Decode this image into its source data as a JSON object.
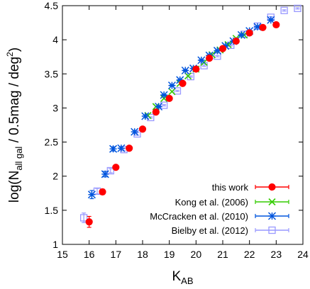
{
  "chart_data": {
    "type": "scatter",
    "xlabel": "K",
    "xlabel_sub": "AB",
    "ylabel_pre": "log(N",
    "ylabel_sub": "all gal",
    "ylabel_mid": " / 0.5mag / deg",
    "ylabel_sup": "2",
    "ylabel_post": ")",
    "xlim": [
      15,
      24
    ],
    "ylim": [
      1,
      4.5
    ],
    "xticks": [
      15,
      16,
      17,
      18,
      19,
      20,
      21,
      22,
      23,
      24
    ],
    "yticks": [
      1,
      1.5,
      2,
      2.5,
      3,
      3.5,
      4,
      4.5
    ],
    "legend_position": "bottom-right",
    "series": [
      {
        "name": "this work",
        "color": "#ff0000",
        "marker": "filled-circle",
        "x": [
          16.0,
          16.5,
          17.0,
          17.5,
          18.0,
          18.5,
          19.0,
          19.5,
          20.0,
          20.5,
          21.0,
          21.5,
          22.0,
          22.5,
          23.0
        ],
        "y": [
          1.33,
          1.77,
          2.13,
          2.41,
          2.69,
          2.94,
          3.14,
          3.36,
          3.57,
          3.73,
          3.87,
          3.98,
          4.1,
          4.18,
          4.22
        ],
        "yerr": [
          0.08,
          0.04,
          0.02,
          0.02,
          0.01,
          0.01,
          0.01,
          0.01,
          0.01,
          0.01,
          0.01,
          0.01,
          0.01,
          0.01,
          0.01
        ]
      },
      {
        "name": "Kong et al. (2006)",
        "color": "#33cc00",
        "marker": "x",
        "x": [
          18.2,
          18.5,
          18.8,
          19.1,
          19.4,
          19.7,
          20.0,
          20.3,
          20.6,
          20.9,
          21.2,
          21.5,
          21.8
        ],
        "y": [
          2.89,
          3.02,
          3.14,
          3.24,
          3.36,
          3.47,
          3.57,
          3.67,
          3.78,
          3.85,
          3.93,
          4.02,
          4.07
        ]
      },
      {
        "name": "McCracken et al. (2010)",
        "color": "#0055dd",
        "marker": "asterisk",
        "x": [
          16.1,
          16.6,
          16.9,
          17.2,
          17.7,
          18.1,
          18.6,
          18.8,
          19.1,
          19.4,
          19.6,
          19.9,
          20.2,
          20.5,
          20.8,
          21.1,
          21.4,
          21.7,
          22.0,
          22.3,
          22.8
        ],
        "y": [
          1.73,
          2.03,
          2.4,
          2.41,
          2.65,
          2.88,
          3.02,
          3.19,
          3.33,
          3.41,
          3.55,
          3.58,
          3.7,
          3.77,
          3.84,
          3.91,
          3.98,
          4.07,
          4.13,
          4.19,
          4.29
        ],
        "yerr": [
          0.06,
          0.04,
          0.03,
          0.02,
          0.02,
          0.02,
          0.01,
          0.01,
          0.01,
          0.01,
          0.01,
          0.01,
          0.01,
          0.01,
          0.01,
          0.01,
          0.01,
          0.01,
          0.01,
          0.01,
          0.01
        ]
      },
      {
        "name": "Bielby et al. (2012)",
        "color": "#9999ff",
        "marker": "open-square",
        "x": [
          15.8,
          16.3,
          16.8,
          17.3,
          17.8,
          18.3,
          18.8,
          19.3,
          19.8,
          20.3,
          20.8,
          21.3,
          21.8,
          22.3,
          22.8,
          23.3,
          23.8
        ],
        "y": [
          1.39,
          1.78,
          2.08,
          2.39,
          2.62,
          2.86,
          3.04,
          3.25,
          3.46,
          3.62,
          3.76,
          3.92,
          4.08,
          4.2,
          4.33,
          4.43,
          4.46
        ],
        "yerr": [
          0.07,
          0.04,
          0.03,
          0.02,
          0.02,
          0.01,
          0.01,
          0.01,
          0.01,
          0.01,
          0.01,
          0.01,
          0.01,
          0.01,
          0.01,
          0.01,
          0.01
        ]
      }
    ]
  }
}
